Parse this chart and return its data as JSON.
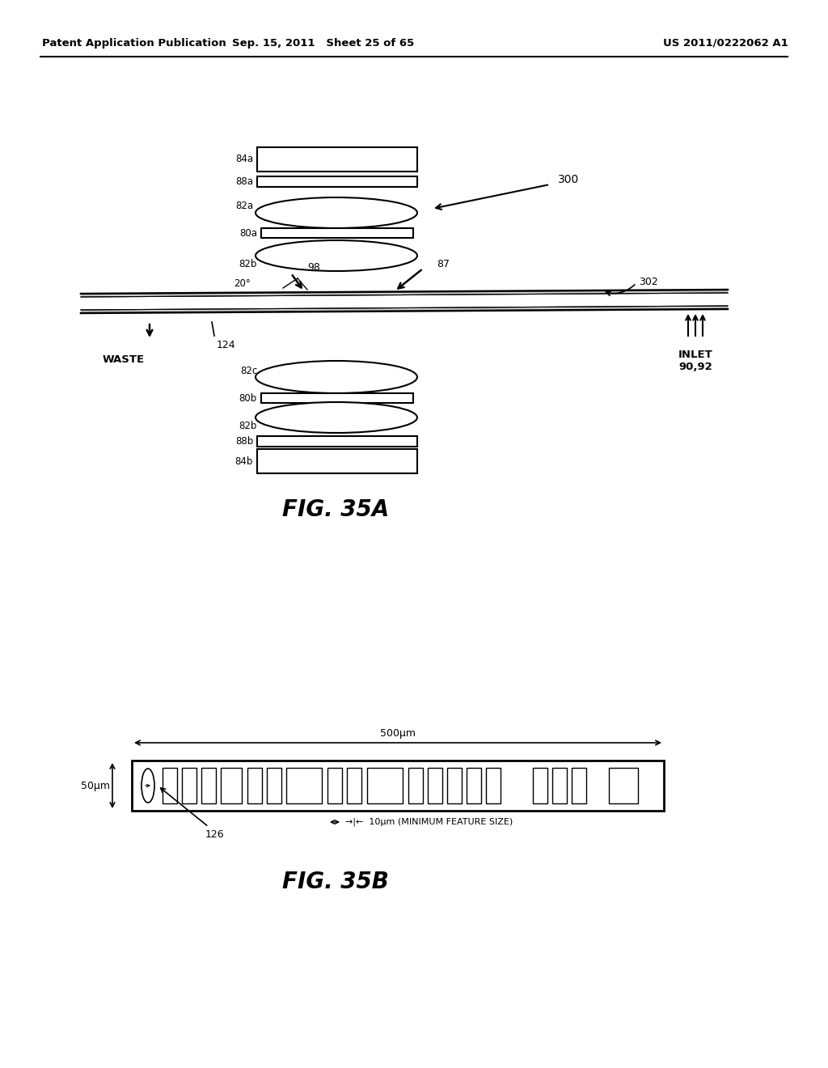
{
  "bg_color": "#ffffff",
  "header_left": "Patent Application Publication",
  "header_mid": "Sep. 15, 2011   Sheet 25 of 65",
  "header_right": "US 2011/0222062 A1",
  "fig35a_caption": "FIG. 35A",
  "fig35b_caption": "FIG. 35B",
  "label_300": "300",
  "label_302": "302",
  "label_98": "98",
  "label_87": "87",
  "label_20deg": "20°",
  "label_124": "124",
  "label_waste": "WASTE",
  "label_inlet": "INLET\n90,92",
  "label_84a": "84a",
  "label_88a": "88a",
  "label_82a": "82a",
  "label_80a": "80a",
  "label_82b_top": "82b",
  "label_82c": "82c",
  "label_80b": "80b",
  "label_82b_bot": "82b",
  "label_88b": "88b",
  "label_84b": "84b",
  "label_500um": "500μm",
  "label_50um": "50μm",
  "label_10um": "→|←  10μm (MINIMUM FEATURE SIZE)",
  "label_126": "126"
}
